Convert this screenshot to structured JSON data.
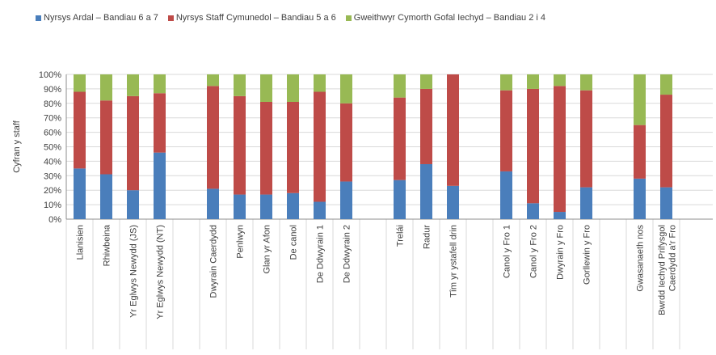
{
  "chart_data": {
    "type": "bar",
    "stacked": true,
    "percent": true,
    "title": "",
    "xlabel": "",
    "ylabel": "Cyfran y staff",
    "ylim": [
      0,
      100
    ],
    "yticks": [
      "0%",
      "10%",
      "20%",
      "30%",
      "40%",
      "50%",
      "60%",
      "70%",
      "80%",
      "90%",
      "100%"
    ],
    "grid": true,
    "legend_position": "top",
    "group_sizes": [
      4,
      6,
      3,
      4,
      2
    ],
    "categories": [
      "Llanisien",
      "Rhiwbeina",
      "Yr Eglwys Newydd (JS)",
      "Yr Eglwys Newydd (NT)",
      "Dwyrain Caerdydd",
      "Penlwyn",
      "Glan yr Afon",
      "De canol",
      "De Ddwyrain 1",
      "De Ddwyrain 2",
      "Trelái",
      "Radur",
      "Tîm yr ystafell drin",
      "Canol y Fro 1",
      "Canol y Fro 2",
      "Dwyrain y Fro",
      "Gorllewin y Fro",
      "Gwasanaeth nos",
      "Bwrdd Iechyd Prifysgol Caerdydd a'r Fro"
    ],
    "series": [
      {
        "name": "Nyrsys Ardal – Bandiau 6 a 7",
        "color": "#4a7ebb",
        "values": [
          35,
          31,
          20,
          46,
          21,
          17,
          17,
          18,
          12,
          26,
          27,
          38,
          23,
          33,
          11,
          5,
          22,
          28,
          22
        ]
      },
      {
        "name": "Nyrsys Staff Cymunedol – Bandiau 5 a 6",
        "color": "#be4b48",
        "values": [
          53,
          51,
          65,
          41,
          71,
          68,
          64,
          63,
          76,
          54,
          57,
          52,
          77,
          56,
          79,
          87,
          67,
          37,
          64
        ]
      },
      {
        "name": "Gweithwyr Cymorth Gofal Iechyd – Bandiau 2 i 4",
        "color": "#98b954",
        "values": [
          12,
          18,
          15,
          13,
          8,
          15,
          19,
          19,
          12,
          20,
          16,
          10,
          0,
          11,
          10,
          8,
          11,
          35,
          14
        ]
      }
    ]
  }
}
